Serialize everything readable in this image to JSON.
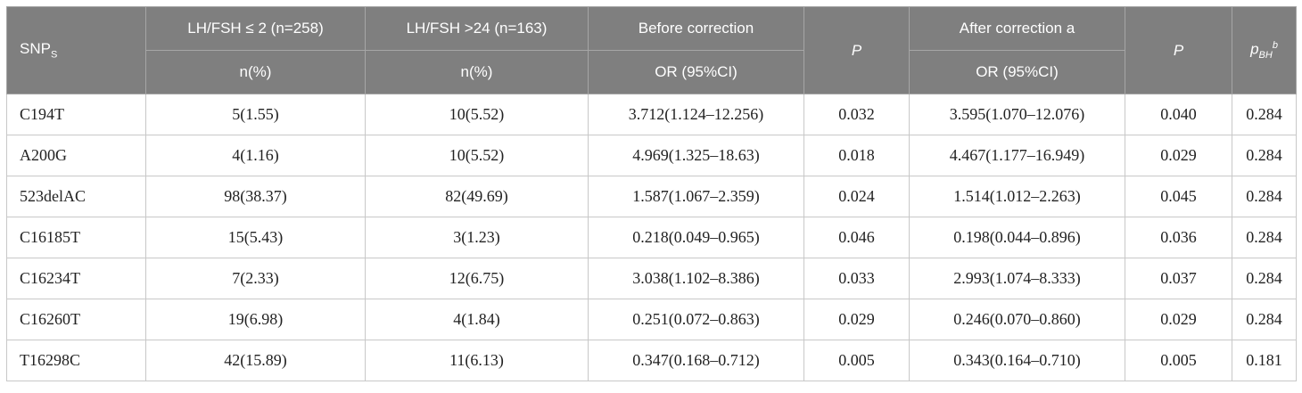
{
  "header": {
    "snps_label": "SNP",
    "snps_sub": "S",
    "group1": "LH/FSH ≤ 2 (n=258)",
    "group2": "LH/FSH >24 (n=163)",
    "before": "Before correction",
    "p1": "P",
    "after": "After correction a",
    "p2": "P",
    "pbh_base": "p",
    "pbh_sub": "BH",
    "pbh_sup": "b",
    "n1": "n(%)",
    "n2": "n(%)",
    "or1": "OR (95%CI)",
    "or2": "OR (95%CI)"
  },
  "rows": [
    {
      "snp": "C194T",
      "g1": "5(1.55)",
      "g2": "10(5.52)",
      "or_before": "3.712(1.124–12.256)",
      "p_before": "0.032",
      "or_after": "3.595(1.070–12.076)",
      "p_after": "0.040",
      "pbh": "0.284"
    },
    {
      "snp": "A200G",
      "g1": "4(1.16)",
      "g2": "10(5.52)",
      "or_before": "4.969(1.325–18.63)",
      "p_before": "0.018",
      "or_after": "4.467(1.177–16.949)",
      "p_after": "0.029",
      "pbh": "0.284"
    },
    {
      "snp": "523delAC",
      "g1": "98(38.37)",
      "g2": "82(49.69)",
      "or_before": "1.587(1.067–2.359)",
      "p_before": "0.024",
      "or_after": "1.514(1.012–2.263)",
      "p_after": "0.045",
      "pbh": "0.284"
    },
    {
      "snp": "C16185T",
      "g1": "15(5.43)",
      "g2": "3(1.23)",
      "or_before": "0.218(0.049–0.965)",
      "p_before": "0.046",
      "or_after": "0.198(0.044–0.896)",
      "p_after": "0.036",
      "pbh": "0.284"
    },
    {
      "snp": "C16234T",
      "g1": "7(2.33)",
      "g2": "12(6.75)",
      "or_before": "3.038(1.102–8.386)",
      "p_before": "0.033",
      "or_after": "2.993(1.074–8.333)",
      "p_after": "0.037",
      "pbh": "0.284"
    },
    {
      "snp": "C16260T",
      "g1": "19(6.98)",
      "g2": "4(1.84)",
      "or_before": "0.251(0.072–0.863)",
      "p_before": "0.029",
      "or_after": "0.246(0.070–0.860)",
      "p_after": "0.029",
      "pbh": "0.284"
    },
    {
      "snp": "T16298C",
      "g1": "42(15.89)",
      "g2": "11(6.13)",
      "or_before": "0.347(0.168–0.712)",
      "p_before": "0.005",
      "or_after": "0.343(0.164–0.710)",
      "p_after": "0.005",
      "pbh": "0.181"
    }
  ]
}
